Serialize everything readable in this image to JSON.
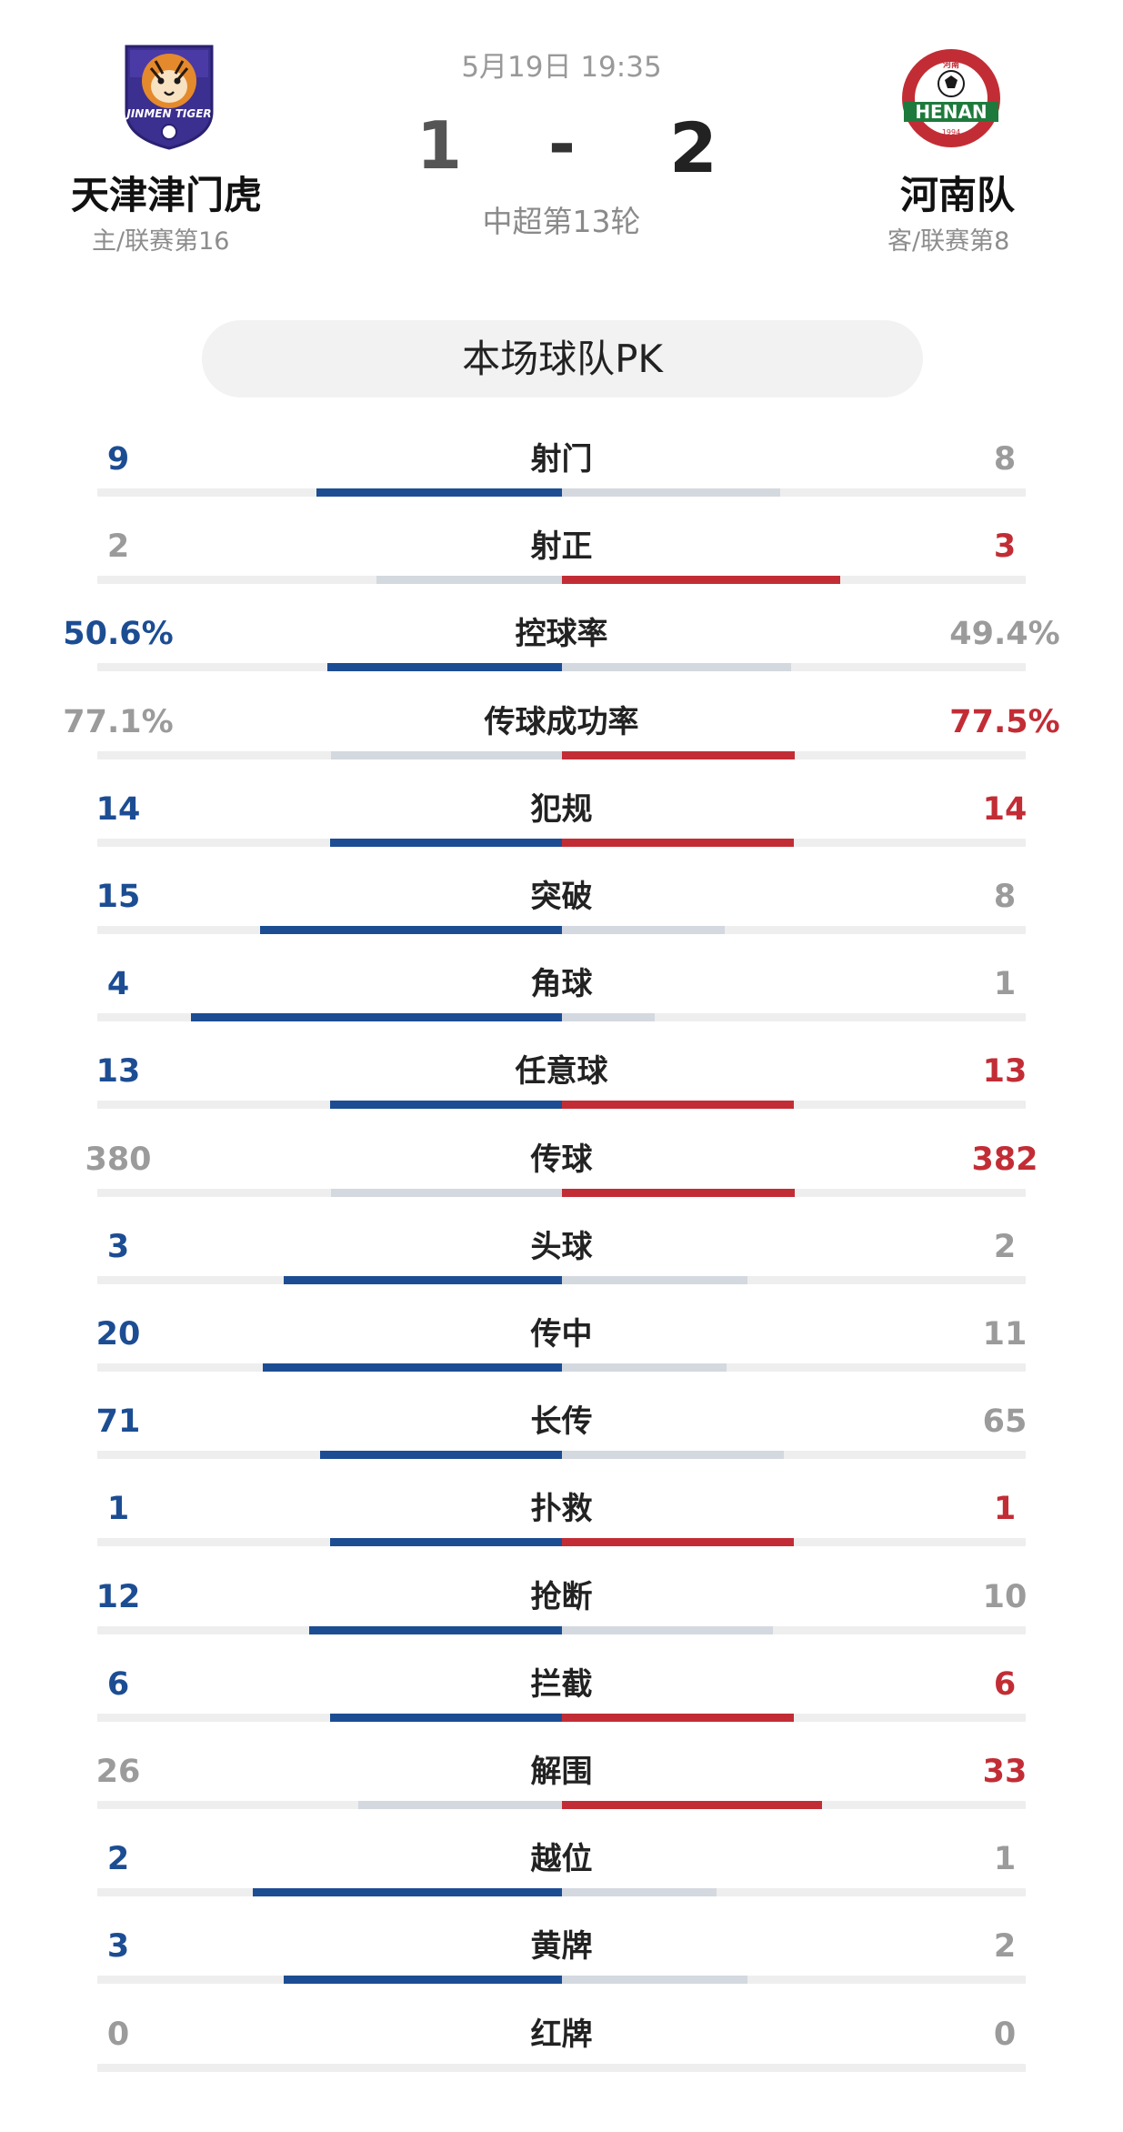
{
  "match": {
    "date_time": "5月19日 19:35",
    "home_score": "1",
    "separator": "-",
    "away_score": "2",
    "round": "中超第13轮"
  },
  "home_team": {
    "name": "天津津门虎",
    "sub": "主/联赛第16",
    "logo_icon": "jinmen-tiger-crest-icon",
    "logo_text": "JINMEN TIGER",
    "color": "#1c4d93"
  },
  "away_team": {
    "name": "河南队",
    "sub": "客/联赛第8",
    "logo_icon": "henan-fc-crest-icon",
    "logo_text": "HENAN",
    "logo_ring_text": "HENAN FOOTBALL CLUB",
    "logo_center_text": "河南",
    "logo_year": "1994",
    "color": "#c22d35"
  },
  "section_title": "本场球队PK",
  "colors": {
    "home": "#1c4d93",
    "away": "#c22d35",
    "neutral": "#9b9b9b",
    "neutral_bar": "#d4d8df",
    "track": "#eeeeee"
  },
  "stats": [
    {
      "label": "射门",
      "home": "9",
      "away": "8",
      "home_frac": 0.53,
      "away_frac": 0.47,
      "home_color": "blue",
      "away_color": "gray"
    },
    {
      "label": "射正",
      "home": "2",
      "away": "3",
      "home_frac": 0.4,
      "away_frac": 0.6,
      "home_color": "gray",
      "away_color": "red"
    },
    {
      "label": "控球率",
      "home": "50.6%",
      "away": "49.4%",
      "home_frac": 0.506,
      "away_frac": 0.494,
      "home_color": "blue",
      "away_color": "gray"
    },
    {
      "label": "传球成功率",
      "home": "77.1%",
      "away": "77.5%",
      "home_frac": 0.499,
      "away_frac": 0.501,
      "home_color": "gray",
      "away_color": "red"
    },
    {
      "label": "犯规",
      "home": "14",
      "away": "14",
      "home_frac": 0.5,
      "away_frac": 0.5,
      "home_color": "blue",
      "away_color": "red"
    },
    {
      "label": "突破",
      "home": "15",
      "away": "8",
      "home_frac": 0.65,
      "away_frac": 0.35,
      "home_color": "blue",
      "away_color": "gray"
    },
    {
      "label": "角球",
      "home": "4",
      "away": "1",
      "home_frac": 0.8,
      "away_frac": 0.2,
      "home_color": "blue",
      "away_color": "gray"
    },
    {
      "label": "任意球",
      "home": "13",
      "away": "13",
      "home_frac": 0.5,
      "away_frac": 0.5,
      "home_color": "blue",
      "away_color": "red"
    },
    {
      "label": "传球",
      "home": "380",
      "away": "382",
      "home_frac": 0.499,
      "away_frac": 0.501,
      "home_color": "gray",
      "away_color": "red"
    },
    {
      "label": "头球",
      "home": "3",
      "away": "2",
      "home_frac": 0.6,
      "away_frac": 0.4,
      "home_color": "blue",
      "away_color": "gray"
    },
    {
      "label": "传中",
      "home": "20",
      "away": "11",
      "home_frac": 0.645,
      "away_frac": 0.355,
      "home_color": "blue",
      "away_color": "gray"
    },
    {
      "label": "长传",
      "home": "71",
      "away": "65",
      "home_frac": 0.522,
      "away_frac": 0.478,
      "home_color": "blue",
      "away_color": "gray"
    },
    {
      "label": "扑救",
      "home": "1",
      "away": "1",
      "home_frac": 0.5,
      "away_frac": 0.5,
      "home_color": "blue",
      "away_color": "red"
    },
    {
      "label": "抢断",
      "home": "12",
      "away": "10",
      "home_frac": 0.545,
      "away_frac": 0.455,
      "home_color": "blue",
      "away_color": "gray"
    },
    {
      "label": "拦截",
      "home": "6",
      "away": "6",
      "home_frac": 0.5,
      "away_frac": 0.5,
      "home_color": "blue",
      "away_color": "red"
    },
    {
      "label": "解围",
      "home": "26",
      "away": "33",
      "home_frac": 0.44,
      "away_frac": 0.56,
      "home_color": "gray",
      "away_color": "red"
    },
    {
      "label": "越位",
      "home": "2",
      "away": "1",
      "home_frac": 0.667,
      "away_frac": 0.333,
      "home_color": "blue",
      "away_color": "gray"
    },
    {
      "label": "黄牌",
      "home": "3",
      "away": "2",
      "home_frac": 0.6,
      "away_frac": 0.4,
      "home_color": "blue",
      "away_color": "gray"
    },
    {
      "label": "红牌",
      "home": "0",
      "away": "0",
      "home_frac": 0,
      "away_frac": 0,
      "home_color": "gray",
      "away_color": "gray"
    }
  ]
}
